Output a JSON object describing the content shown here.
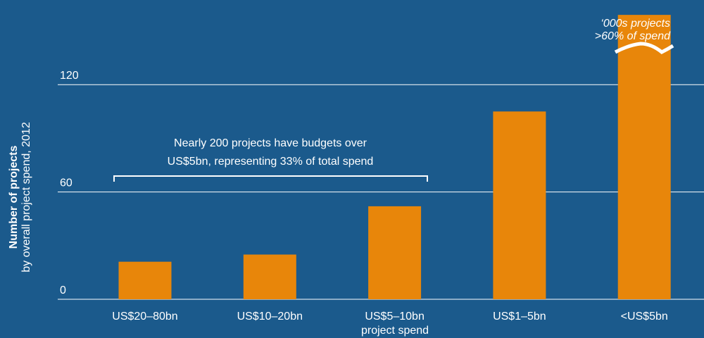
{
  "chart_data": {
    "type": "bar",
    "ylabel": "Number of projects",
    "ylabel_sub": "by overall project spend, 2012",
    "xlabel": "project spend",
    "categories": [
      "US$20–80bn",
      "US$10–20bn",
      "US$5–10bn",
      "US$1–5bn",
      "<US$5bn"
    ],
    "values": [
      21,
      25,
      52,
      105,
      159
    ],
    "color": "#e8860a",
    "ylim": [
      0,
      160
    ],
    "yticks": [
      0,
      60,
      120
    ],
    "grid": true,
    "annotation": [
      "Nearly 200 projects have budgets over",
      "US$5bn, representing 33% of total spend"
    ],
    "break_note": [
      "‘000s projects",
      ">60% of spend"
    ]
  }
}
